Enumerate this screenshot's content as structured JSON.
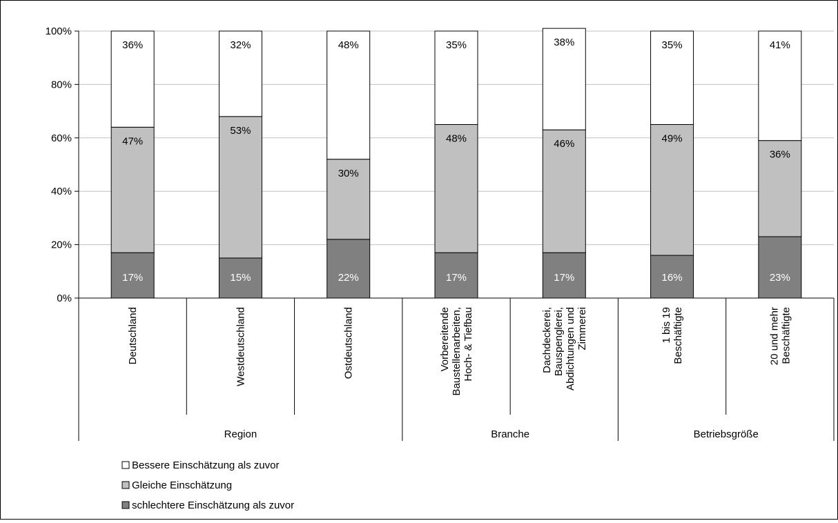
{
  "chart_data": {
    "type": "bar",
    "stacked": true,
    "percent": true,
    "categories": [
      "Deutschland",
      "Westdeutschland",
      "Ostdeutschland",
      "Vorbereitende Baustellenarbeiten, Hoch- & Tiefbau",
      "Dachdeckerei, Bauspenglerei, Abdichtungen und Zimmerei",
      "1 bis 19 Beschäftigte",
      "20 und mehr Beschäftigte"
    ],
    "category_lines": [
      [
        "Deutschland"
      ],
      [
        "Westdeutschland"
      ],
      [
        "Ostdeutschland"
      ],
      [
        "Vorbereitende",
        "Baustellenarbeiten,",
        "Hoch- & Tiefbau"
      ],
      [
        "Dachdeckerei,",
        "Bauspenglerei,",
        "Abdichtungen und",
        "Zimmerei"
      ],
      [
        "1 bis 19",
        "Beschäftigte"
      ],
      [
        "20 und mehr",
        "Beschäftigte"
      ]
    ],
    "groups": [
      {
        "name": "Region",
        "start": 0,
        "end": 2
      },
      {
        "name": "Branche",
        "start": 3,
        "end": 4
      },
      {
        "name": "Betriebsgröße",
        "start": 5,
        "end": 6
      }
    ],
    "series": [
      {
        "name": "schlechtere Einschätzung als zuvor",
        "color": "#808080",
        "label_color": "#ffffff",
        "values": [
          17,
          15,
          22,
          17,
          17,
          16,
          23
        ],
        "labels": [
          "17%",
          "15%",
          "22%",
          "17%",
          "17%",
          "16%",
          "23%"
        ]
      },
      {
        "name": "Gleiche Einschätzung",
        "color": "#c0c0c0",
        "label_color": "#000000",
        "values": [
          47,
          53,
          30,
          48,
          46,
          49,
          36
        ],
        "labels": [
          "47%",
          "53%",
          "30%",
          "48%",
          "46%",
          "49%",
          "36%"
        ]
      },
      {
        "name": "Bessere Einschätzung als zuvor",
        "color": "#ffffff",
        "label_color": "#000000",
        "values": [
          36,
          32,
          48,
          35,
          38,
          35,
          41
        ],
        "labels": [
          "36%",
          "32%",
          "48%",
          "35%",
          "38%",
          "35%",
          "41%"
        ]
      }
    ],
    "legend_order": [
      2,
      1,
      0
    ],
    "legend_position": "bottom-left",
    "yticks": [
      "0%",
      "20%",
      "40%",
      "60%",
      "80%",
      "100%"
    ],
    "ylim": [
      0,
      100
    ],
    "grid": true,
    "title": "",
    "xlabel": "",
    "ylabel": ""
  }
}
